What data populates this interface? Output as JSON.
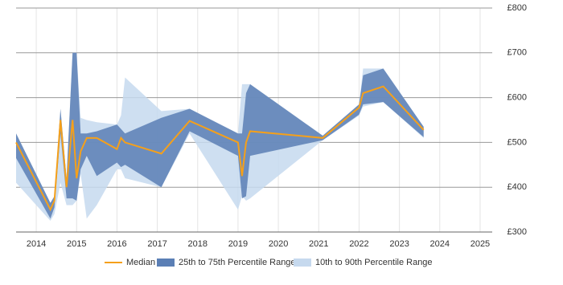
{
  "chart_data": {
    "type": "line",
    "x": [
      2013.5,
      2014.35,
      2014.45,
      2014.6,
      2014.75,
      2014.9,
      2015.0,
      2015.1,
      2015.25,
      2015.5,
      2016.0,
      2016.1,
      2016.2,
      2017.1,
      2017.8,
      2019.0,
      2019.1,
      2019.2,
      2019.3,
      2021.1,
      2022.0,
      2022.1,
      2022.6,
      2023.6
    ],
    "series": [
      {
        "name": "10th to 90th Percentile Range",
        "kind": "band",
        "color": "#c6d9ee",
        "lower": [
          410,
          325,
          340,
          410,
          360,
          360,
          370,
          430,
          330,
          360,
          440,
          440,
          420,
          400,
          520,
          350,
          380,
          370,
          375,
          505,
          560,
          580,
          590,
          510
        ],
        "upper": [
          520,
          365,
          380,
          575,
          420,
          700,
          700,
          555,
          550,
          545,
          540,
          560,
          645,
          570,
          575,
          520,
          630,
          630,
          630,
          515,
          585,
          665,
          665,
          535
        ]
      },
      {
        "name": "25th to 75th Percentile Range",
        "kind": "band",
        "color": "#5b7fb5",
        "lower": [
          465,
          330,
          355,
          520,
          375,
          375,
          370,
          440,
          470,
          425,
          455,
          445,
          450,
          400,
          525,
          470,
          375,
          380,
          470,
          505,
          562,
          585,
          590,
          512
        ],
        "upper": [
          520,
          365,
          380,
          575,
          420,
          700,
          700,
          520,
          520,
          525,
          540,
          530,
          520,
          555,
          575,
          520,
          520,
          610,
          630,
          515,
          585,
          650,
          665,
          535
        ]
      },
      {
        "name": "Median",
        "kind": "line",
        "color": "#f5a01a",
        "values": [
          500,
          350,
          370,
          550,
          400,
          550,
          420,
          480,
          510,
          510,
          485,
          510,
          500,
          475,
          548,
          500,
          425,
          500,
          525,
          510,
          578,
          610,
          625,
          528
        ]
      }
    ],
    "xlim": [
      2013.5,
      2025.3
    ],
    "xticks": [
      2014,
      2015,
      2016,
      2017,
      2018,
      2019,
      2020,
      2021,
      2022,
      2023,
      2024,
      2025
    ],
    "ylim": [
      300,
      800
    ],
    "yticks": [
      {
        "value": 300,
        "label": "£300"
      },
      {
        "value": 400,
        "label": "£400"
      },
      {
        "value": 500,
        "label": "£500"
      },
      {
        "value": 600,
        "label": "£600"
      },
      {
        "value": 700,
        "label": "£700"
      },
      {
        "value": 800,
        "label": "£800"
      }
    ],
    "grid": true,
    "legend": "bottom"
  }
}
